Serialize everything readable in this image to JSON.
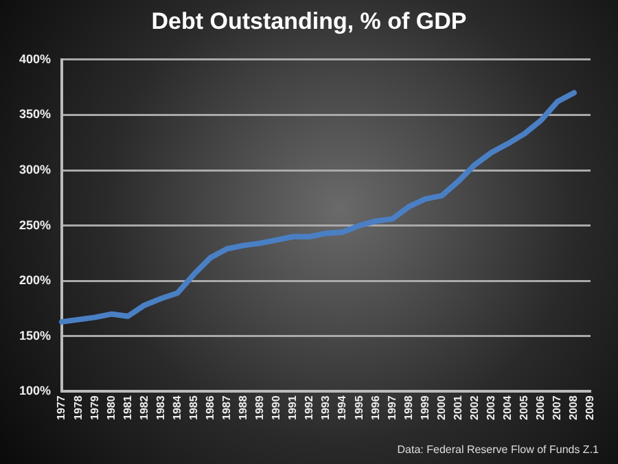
{
  "chart_data": {
    "type": "line",
    "title": "Debt Outstanding, % of GDP",
    "categories": [
      "1977",
      "1978",
      "1979",
      "1980",
      "1981",
      "1982",
      "1983",
      "1984",
      "1985",
      "1986",
      "1987",
      "1988",
      "1989",
      "1990",
      "1991",
      "1992",
      "1993",
      "1994",
      "1995",
      "1996",
      "1997",
      "1998",
      "1999",
      "2000",
      "2001",
      "2002",
      "2003",
      "2004",
      "2005",
      "2006",
      "2007",
      "2008",
      "2009"
    ],
    "series": [
      {
        "color": "#4a7fc4",
        "values": [
          163,
          165,
          167,
          170,
          168,
          178,
          184,
          189,
          206,
          221,
          229,
          232,
          234,
          237,
          240,
          240,
          243,
          244,
          250,
          254,
          256,
          267,
          274,
          277,
          290,
          305,
          316,
          324,
          333,
          345,
          362,
          370,
          null
        ]
      }
    ],
    "ylim": [
      100,
      400
    ],
    "yticks": [
      {
        "value": 100,
        "label": "100%"
      },
      {
        "value": 150,
        "label": "150%"
      },
      {
        "value": 200,
        "label": "200%"
      },
      {
        "value": 250,
        "label": "250%"
      },
      {
        "value": 300,
        "label": "300%"
      },
      {
        "value": 350,
        "label": "350%"
      },
      {
        "value": 400,
        "label": "400%"
      }
    ],
    "grid": "y",
    "legend": false,
    "marker": "none",
    "line_style": "solid",
    "annotations": [
      "Data: Federal Reserve Flow of Funds Z.1"
    ]
  }
}
